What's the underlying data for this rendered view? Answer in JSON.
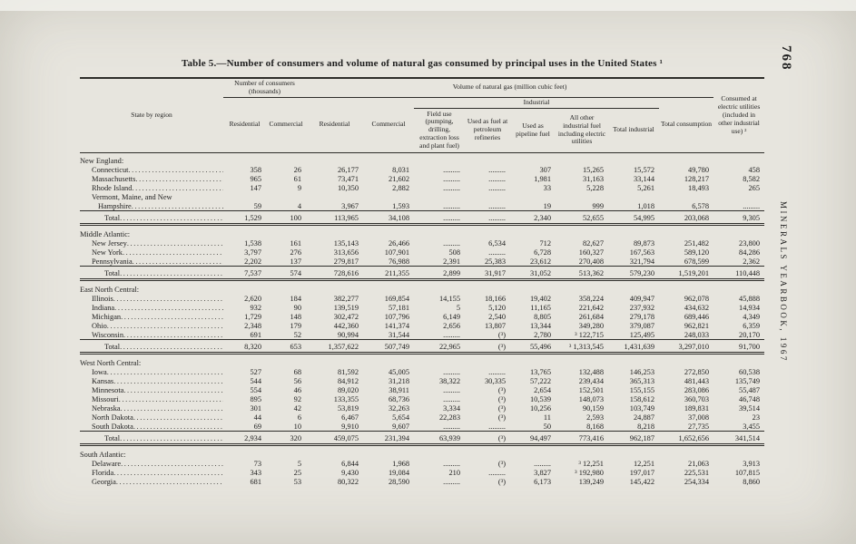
{
  "page": {
    "number": "768",
    "margin_text": "MINERALS YEARBOOK, 1967",
    "title": "Table 5.—Number of consumers and volume of natural gas consumed by principal uses in the United States ¹"
  },
  "table": {
    "headers": {
      "state": "State by region",
      "consumers_group": "Number of consumers (thousands)",
      "volume_group": "Volume of natural gas (million cubic feet)",
      "industrial_group": "Industrial",
      "residential_consumers": "Residen­tial",
      "commercial_consumers": "Com­mercial",
      "residential": "Residential",
      "commercial": "Commercial",
      "field_use": "Field use (pumping, drilling, extraction loss and plant fuel)",
      "refinery_fuel": "Used as fuel at petroleum refineries",
      "pipeline_fuel": "Used as pipeline fuel",
      "other_industrial": "All other industrial fuel including electric utilities",
      "total_industrial": "Total industrial",
      "total_consumption": "Total consumption",
      "electric_utilities": "Consumed at electric utilities (included in other industrial use) ²"
    },
    "sections": [
      {
        "name": "New England:",
        "rows": [
          {
            "label": "Connecticut",
            "values": [
              "358",
              "26",
              "26,177",
              "8,031",
              ".........",
              ".........",
              "307",
              "15,265",
              "15,572",
              "49,780",
              "458"
            ]
          },
          {
            "label": "Massachusetts",
            "values": [
              "965",
              "61",
              "73,471",
              "21,602",
              ".........",
              ".........",
              "1,981",
              "31,163",
              "33,144",
              "128,217",
              "8,582"
            ]
          },
          {
            "label": "Rhode Island",
            "values": [
              "147",
              "9",
              "10,350",
              "2,882",
              ".........",
              ".........",
              "33",
              "5,228",
              "5,261",
              "18,493",
              "265"
            ]
          },
          {
            "lines": [
              "Vermont, Maine, and New",
              "Hampshire"
            ],
            "values": [
              "59",
              "4",
              "3,967",
              "1,593",
              ".........",
              ".........",
              "19",
              "999",
              "1,018",
              "6,578",
              "........."
            ]
          }
        ],
        "total": {
          "label": "Total",
          "values": [
            "1,529",
            "100",
            "113,965",
            "34,108",
            ".........",
            ".........",
            "2,340",
            "52,655",
            "54,995",
            "203,068",
            "9,305"
          ]
        }
      },
      {
        "name": "Middle Atlantic:",
        "rows": [
          {
            "label": "New Jersey",
            "values": [
              "1,538",
              "161",
              "135,143",
              "26,466",
              ".........",
              "6,534",
              "712",
              "82,627",
              "89,873",
              "251,482",
              "23,800"
            ]
          },
          {
            "label": "New York",
            "values": [
              "3,797",
              "276",
              "313,656",
              "107,901",
              "508",
              ".........",
              "6,728",
              "160,327",
              "167,563",
              "589,120",
              "84,286"
            ]
          },
          {
            "label": "Pennsylvania",
            "values": [
              "2,202",
              "137",
              "279,817",
              "76,988",
              "2,391",
              "25,383",
              "23,612",
              "270,408",
              "321,794",
              "678,599",
              "2,362"
            ]
          }
        ],
        "total": {
          "label": "Total",
          "values": [
            "7,537",
            "574",
            "728,616",
            "211,355",
            "2,899",
            "31,917",
            "31,052",
            "513,362",
            "579,230",
            "1,519,201",
            "110,448"
          ]
        }
      },
      {
        "name": "East North Central:",
        "rows": [
          {
            "label": "Illinois",
            "values": [
              "2,620",
              "184",
              "382,277",
              "169,854",
              "14,155",
              "18,166",
              "19,402",
              "358,224",
              "409,947",
              "962,078",
              "45,888"
            ]
          },
          {
            "label": "Indiana",
            "values": [
              "932",
              "90",
              "139,519",
              "57,181",
              "5",
              "5,120",
              "11,165",
              "221,642",
              "237,932",
              "434,632",
              "14,934"
            ]
          },
          {
            "label": "Michigan",
            "values": [
              "1,729",
              "148",
              "302,472",
              "107,796",
              "6,149",
              "2,540",
              "8,805",
              "261,684",
              "279,178",
              "689,446",
              "4,349"
            ]
          },
          {
            "label": "Ohio",
            "values": [
              "2,348",
              "179",
              "442,360",
              "141,374",
              "2,656",
              "13,807",
              "13,344",
              "349,280",
              "379,087",
              "962,821",
              "6,359"
            ]
          },
          {
            "label": "Wisconsin",
            "values": [
              "691",
              "52",
              "90,994",
              "31,544",
              ".........",
              "(³)",
              "2,780",
              "³ 122,715",
              "125,495",
              "248,033",
              "20,170"
            ]
          }
        ],
        "total": {
          "label": "Total",
          "values": [
            "8,320",
            "653",
            "1,357,622",
            "507,749",
            "22,965",
            "(³)",
            "55,496",
            "³ 1,313,545",
            "1,431,639",
            "3,297,010",
            "91,700"
          ]
        }
      },
      {
        "name": "West North Central:",
        "rows": [
          {
            "label": "Iowa",
            "values": [
              "527",
              "68",
              "81,592",
              "45,005",
              ".........",
              ".........",
              "13,765",
              "132,488",
              "146,253",
              "272,850",
              "60,538"
            ]
          },
          {
            "label": "Kansas",
            "values": [
              "544",
              "56",
              "84,912",
              "31,218",
              "38,322",
              "30,335",
              "57,222",
              "239,434",
              "365,313",
              "481,443",
              "135,749"
            ]
          },
          {
            "label": "Minnesota",
            "values": [
              "554",
              "46",
              "89,020",
              "38,911",
              ".........",
              "(³)",
              "2,654",
              "152,501",
              "155,155",
              "283,086",
              "55,487"
            ]
          },
          {
            "label": "Missouri",
            "values": [
              "895",
              "92",
              "133,355",
              "68,736",
              ".........",
              "(³)",
              "10,539",
              "148,073",
              "158,612",
              "360,703",
              "46,748"
            ]
          },
          {
            "label": "Nebraska",
            "values": [
              "301",
              "42",
              "53,819",
              "32,263",
              "3,334",
              "(³)",
              "10,256",
              "90,159",
              "103,749",
              "189,831",
              "39,514"
            ]
          },
          {
            "label": "North Dakota",
            "values": [
              "44",
              "6",
              "6,467",
              "5,654",
              "22,283",
              "(³)",
              "11",
              "2,593",
              "24,887",
              "37,008",
              "23"
            ]
          },
          {
            "label": "South Dakota",
            "values": [
              "69",
              "10",
              "9,910",
              "9,607",
              ".........",
              ".........",
              "50",
              "8,168",
              "8,218",
              "27,735",
              "3,455"
            ]
          }
        ],
        "total": {
          "label": "Total",
          "values": [
            "2,934",
            "320",
            "459,075",
            "231,394",
            "63,939",
            "(³)",
            "94,497",
            "773,416",
            "962,187",
            "1,652,656",
            "341,514"
          ]
        }
      },
      {
        "name": "South Atlantic:",
        "rows": [
          {
            "label": "Delaware",
            "values": [
              "73",
              "5",
              "6,844",
              "1,968",
              ".........",
              "(³)",
              ".........",
              "³ 12,251",
              "12,251",
              "21,063",
              "3,913"
            ]
          },
          {
            "label": "Florida",
            "values": [
              "343",
              "25",
              "9,430",
              "19,084",
              "210",
              ".........",
              "3,827",
              "³ 192,980",
              "197,017",
              "225,531",
              "107,815"
            ]
          },
          {
            "label": "Georgia",
            "values": [
              "681",
              "53",
              "80,322",
              "28,590",
              ".........",
              "(³)",
              "6,173",
              "139,249",
              "145,422",
              "254,334",
              "8,860"
            ]
          }
        ]
      }
    ]
  }
}
